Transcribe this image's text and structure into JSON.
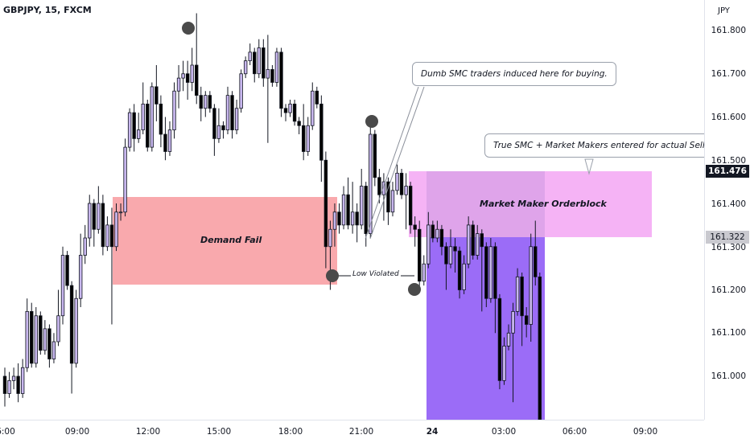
{
  "header": {
    "symbol": "GBPJPY, 15, FXCM"
  },
  "price_axis": {
    "currency": "JPY",
    "labels": [
      "161.800",
      "161.700",
      "161.600",
      "161.500",
      "161.400",
      "161.300",
      "161.200",
      "161.100",
      "161.000"
    ],
    "current_price": "161.476",
    "marker_price": "161.322"
  },
  "time_axis": {
    "labels": [
      "6:00",
      "09:00",
      "12:00",
      "15:00",
      "18:00",
      "21:00",
      "24",
      "03:00",
      "06:00",
      "09:00"
    ]
  },
  "annotations": {
    "demand_zone": "Demand Fail",
    "orderblock_zone": "Market Maker Orderblock",
    "low_violated": "Low Violated",
    "callout_buy": "Dumb SMC traders induced here for buying.",
    "callout_sell": "True SMC + Market Makers entered for actual Sell"
  },
  "colors": {
    "bull_body": "#c8b7ee",
    "bear_body": "#000000",
    "demand_zone": "#f9a9ad",
    "orderblock_zone": "#f5b3f5",
    "sell_zone": "#9b6cf7"
  },
  "chart_data": {
    "type": "candlestick",
    "symbol": "GBPJPY",
    "timeframe": "15",
    "ylim": [
      160.92,
      161.86
    ],
    "candles": [
      [
        161.0,
        160.96,
        161.02,
        160.93
      ],
      [
        160.96,
        160.99,
        161.01,
        160.95
      ],
      [
        160.99,
        161.0,
        161.02,
        160.97
      ],
      [
        161.0,
        160.96,
        161.03,
        160.94
      ],
      [
        160.96,
        161.02,
        161.04,
        160.95
      ],
      [
        161.02,
        161.15,
        161.18,
        161.01
      ],
      [
        161.15,
        161.03,
        161.17,
        161.02
      ],
      [
        161.03,
        161.14,
        161.16,
        161.02
      ],
      [
        161.14,
        161.06,
        161.15,
        161.05
      ],
      [
        161.06,
        161.11,
        161.13,
        161.05
      ],
      [
        161.11,
        161.04,
        161.12,
        161.02
      ],
      [
        161.04,
        161.08,
        161.1,
        161.03
      ],
      [
        161.08,
        161.14,
        161.2,
        161.07
      ],
      [
        161.14,
        161.28,
        161.3,
        161.12
      ],
      [
        161.28,
        161.21,
        161.29,
        161.2
      ],
      [
        161.21,
        161.03,
        161.22,
        160.96
      ],
      [
        161.03,
        161.18,
        161.2,
        161.02
      ],
      [
        161.18,
        161.28,
        161.33,
        161.16
      ],
      [
        161.28,
        161.32,
        161.35,
        161.26
      ],
      [
        161.32,
        161.4,
        161.42,
        161.3
      ],
      [
        161.4,
        161.34,
        161.41,
        161.3
      ],
      [
        161.34,
        161.4,
        161.44,
        161.33
      ],
      [
        161.4,
        161.3,
        161.42,
        161.28
      ],
      [
        161.3,
        161.35,
        161.37,
        161.29
      ],
      [
        161.35,
        161.3,
        161.39,
        161.12
      ],
      [
        161.3,
        161.38,
        161.4,
        161.29
      ],
      [
        161.38,
        161.38,
        161.4,
        161.36
      ],
      [
        161.38,
        161.53,
        161.55,
        161.37
      ],
      [
        161.53,
        161.61,
        161.62,
        161.52
      ],
      [
        161.61,
        161.55,
        161.63,
        161.52
      ],
      [
        161.55,
        161.57,
        161.61,
        161.54
      ],
      [
        161.57,
        161.63,
        161.68,
        161.56
      ],
      [
        161.63,
        161.53,
        161.64,
        161.52
      ],
      [
        161.53,
        161.67,
        161.68,
        161.52
      ],
      [
        161.67,
        161.63,
        161.72,
        161.59
      ],
      [
        161.63,
        161.56,
        161.65,
        161.53
      ],
      [
        161.56,
        161.52,
        161.6,
        161.5
      ],
      [
        161.52,
        161.57,
        161.59,
        161.51
      ],
      [
        161.57,
        161.66,
        161.68,
        161.55
      ],
      [
        161.66,
        161.69,
        161.72,
        161.62
      ],
      [
        161.69,
        161.7,
        161.73,
        161.66
      ],
      [
        161.7,
        161.68,
        161.73,
        161.64
      ],
      [
        161.68,
        161.72,
        161.76,
        161.66
      ],
      [
        161.72,
        161.65,
        161.84,
        161.63
      ],
      [
        161.65,
        161.62,
        161.67,
        161.59
      ],
      [
        161.62,
        161.65,
        161.66,
        161.6
      ],
      [
        161.65,
        161.62,
        161.66,
        161.61
      ],
      [
        161.62,
        161.55,
        161.63,
        161.51
      ],
      [
        161.55,
        161.58,
        161.62,
        161.54
      ],
      [
        161.58,
        161.57,
        161.59,
        161.55
      ],
      [
        161.57,
        161.65,
        161.67,
        161.56
      ],
      [
        161.65,
        161.57,
        161.66,
        161.55
      ],
      [
        161.57,
        161.62,
        161.64,
        161.56
      ],
      [
        161.62,
        161.7,
        161.71,
        161.61
      ],
      [
        161.7,
        161.73,
        161.74,
        161.69
      ],
      [
        161.73,
        161.75,
        161.77,
        161.72
      ],
      [
        161.75,
        161.7,
        161.76,
        161.68
      ],
      [
        161.7,
        161.76,
        161.78,
        161.69
      ],
      [
        161.76,
        161.69,
        161.78,
        161.67
      ],
      [
        161.69,
        161.71,
        161.79,
        161.54
      ],
      [
        161.71,
        161.68,
        161.72,
        161.67
      ],
      [
        161.68,
        161.75,
        161.76,
        161.67
      ],
      [
        161.75,
        161.62,
        161.76,
        161.6
      ],
      [
        161.62,
        161.61,
        161.63,
        161.59
      ],
      [
        161.61,
        161.63,
        161.64,
        161.6
      ],
      [
        161.63,
        161.59,
        161.64,
        161.58
      ],
      [
        161.59,
        161.58,
        161.6,
        161.56
      ],
      [
        161.58,
        161.52,
        161.63,
        161.5
      ],
      [
        161.52,
        161.58,
        161.6,
        161.51
      ],
      [
        161.58,
        161.66,
        161.68,
        161.57
      ],
      [
        161.66,
        161.63,
        161.67,
        161.62
      ],
      [
        161.63,
        161.5,
        161.65,
        161.45
      ],
      [
        161.5,
        161.3,
        161.52,
        161.25
      ],
      [
        161.3,
        161.34,
        161.36,
        161.2
      ],
      [
        161.34,
        161.38,
        161.4,
        161.3
      ],
      [
        161.38,
        161.35,
        161.4,
        161.33
      ],
      [
        161.35,
        161.42,
        161.44,
        161.34
      ],
      [
        161.42,
        161.35,
        161.46,
        161.34
      ],
      [
        161.35,
        161.38,
        161.45,
        161.33
      ],
      [
        161.38,
        161.35,
        161.4,
        161.31
      ],
      [
        161.35,
        161.44,
        161.48,
        161.34
      ],
      [
        161.44,
        161.33,
        161.45,
        161.3
      ],
      [
        161.33,
        161.56,
        161.6,
        161.32
      ],
      [
        161.56,
        161.46,
        161.57,
        161.44
      ],
      [
        161.46,
        161.42,
        161.48,
        161.4
      ],
      [
        161.42,
        161.45,
        161.47,
        161.36
      ],
      [
        161.45,
        161.38,
        161.46,
        161.35
      ],
      [
        161.38,
        161.43,
        161.45,
        161.37
      ],
      [
        161.43,
        161.47,
        161.49,
        161.42
      ],
      [
        161.47,
        161.42,
        161.48,
        161.41
      ],
      [
        161.42,
        161.44,
        161.47,
        161.34
      ],
      [
        161.44,
        161.35,
        161.45,
        161.33
      ],
      [
        161.35,
        161.34,
        161.37,
        161.3
      ],
      [
        161.34,
        161.22,
        161.36,
        161.2
      ],
      [
        161.22,
        161.26,
        161.28,
        161.21
      ],
      [
        161.26,
        161.35,
        161.38,
        161.25
      ],
      [
        161.35,
        161.32,
        161.36,
        161.31
      ],
      [
        161.32,
        161.34,
        161.36,
        161.31
      ],
      [
        161.34,
        161.3,
        161.35,
        161.28
      ],
      [
        161.3,
        161.26,
        161.31,
        161.2
      ],
      [
        161.26,
        161.3,
        161.34,
        161.25
      ],
      [
        161.3,
        161.29,
        161.32,
        161.24
      ],
      [
        161.29,
        161.2,
        161.3,
        161.18
      ],
      [
        161.2,
        161.26,
        161.28,
        161.19
      ],
      [
        161.26,
        161.35,
        161.37,
        161.25
      ],
      [
        161.35,
        161.28,
        161.36,
        161.27
      ],
      [
        161.28,
        161.33,
        161.35,
        161.27
      ],
      [
        161.33,
        161.3,
        161.34,
        161.15
      ],
      [
        161.3,
        161.18,
        161.31,
        161.16
      ],
      [
        161.18,
        161.3,
        161.32,
        161.17
      ],
      [
        161.3,
        161.18,
        161.31,
        161.1
      ],
      [
        161.18,
        160.99,
        161.19,
        160.97
      ],
      [
        160.99,
        161.07,
        161.09,
        160.98
      ],
      [
        161.07,
        161.1,
        161.12,
        161.06
      ],
      [
        161.1,
        161.15,
        161.17,
        160.94
      ],
      [
        161.15,
        161.23,
        161.25,
        161.14
      ],
      [
        161.23,
        161.14,
        161.24,
        161.07
      ],
      [
        161.14,
        161.12,
        161.16,
        161.09
      ],
      [
        161.12,
        161.3,
        161.33,
        161.08
      ],
      [
        161.3,
        161.23,
        161.36,
        161.21
      ],
      [
        161.23,
        160.9,
        161.24,
        160.88
      ]
    ],
    "zones": [
      {
        "name": "Demand Fail",
        "from": 161.21,
        "to": 161.41
      },
      {
        "name": "Market Maker Orderblock",
        "from": 161.32,
        "to": 161.47
      },
      {
        "name": "Sell zone",
        "from": 160.92,
        "to": 161.32
      }
    ],
    "current_price": 161.476
  }
}
